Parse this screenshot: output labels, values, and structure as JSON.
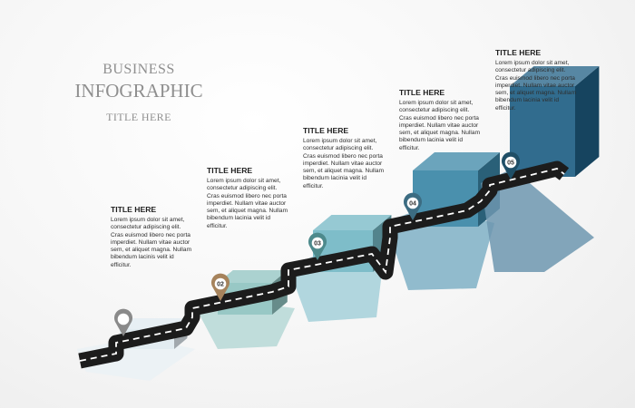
{
  "header": {
    "line1": "BUSINESS",
    "line2": "INFOGRAPHIC",
    "line3": "TITLE HERE"
  },
  "steps": [
    {
      "number": "",
      "title": "TITLE HERE",
      "body": "Lorem ipsum dolor sit amet, consectetur adipiscing elit. Cras euismod libero nec porta imperdiet. Nullam vitae auctor sem, et aliquet magna. Nullam bibendum lacinis velit id efficitur.",
      "color": "#dfeaf0",
      "pin": "#8a8a8a"
    },
    {
      "number": "02",
      "title": "TITLE HERE",
      "body": "Lorem ipsum dolor sit amet, consectetur adipiscing elit. Cras euismod libero nec porta imperdiet. Nullam vitae auctor sem, et aliquet magna. Nullam bibendum lacinia velit id efficitur.",
      "color": "#8fc3c0",
      "pin": "#a6835c"
    },
    {
      "number": "03",
      "title": "TITLE HERE",
      "body": "Lorem ipsum dolor sit amet, consectetur adipiscing elit. Cras euismod libero nec porta imperdiet. Nullam vitae auctor sem, et aliquet magna. Nullam bibendum lacinia velit id efficitur.",
      "color": "#73b7c4",
      "pin": "#4d8a8c"
    },
    {
      "number": "04",
      "title": "TITLE HERE",
      "body": "Lorem ipsum dolor sit amet, consectetur adipiscing elit. Cras euismod libero nec porta imperdiet. Nullam vitae auctor sem, et aliquet magna. Nullam bibendum lacinia velit id efficitur.",
      "color": "#3a86a6",
      "pin": "#3c6c82"
    },
    {
      "number": "05",
      "title": "TITLE HERE",
      "body": "Lorem ipsum dolor sit amet, consectetur adipiscing elit. Cras euismod libero nec porta imperdiet. Nullam vitae auctor sem, et aliquet magna. Nullam bibendum lacinia velit id efficitur.",
      "color": "#1f5f84",
      "pin": "#1f4e66"
    }
  ]
}
